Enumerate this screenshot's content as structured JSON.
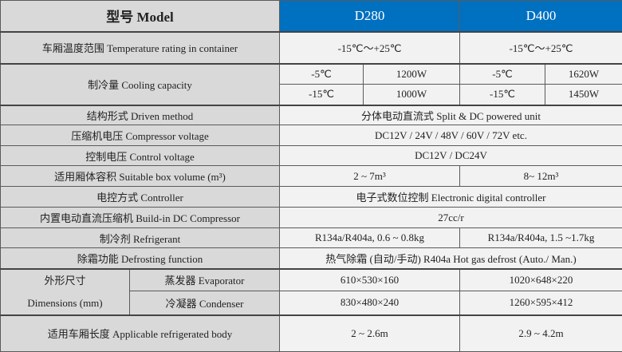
{
  "header": {
    "model": "型号 Model",
    "d280": "D280",
    "d400": "D400"
  },
  "rows": {
    "temp": {
      "label": "车厢温度范围 Temperature rating in container",
      "d280": "-15℃～+25℃",
      "d400": "-15℃～+25℃"
    },
    "cooling": {
      "label": "制冷量  Cooling capacity",
      "d280": [
        [
          "-5℃",
          "1200W"
        ],
        [
          "-15℃",
          "1000W"
        ]
      ],
      "d400": [
        [
          "-5℃",
          "1620W"
        ],
        [
          "-15℃",
          "1450W"
        ]
      ]
    },
    "driven": {
      "label": "结构形式  Driven method",
      "value": "分体电动直流式  Split & DC powered unit"
    },
    "comp_voltage": {
      "label": "压缩机电压 Compressor voltage",
      "value": "DC12V / 24V / 48V / 60V / 72V etc."
    },
    "ctrl_voltage": {
      "label": "控制电压 Control voltage",
      "value": "DC12V / DC24V"
    },
    "box": {
      "label": "适用厢体容积  Suitable box volume (m³)",
      "d280": "2 ~ 7m³",
      "d400": "8~ 12m³"
    },
    "controller": {
      "label": "电控方式  Controller",
      "value": "电子式数位控制   Electronic digital controller"
    },
    "compressor": {
      "label": "内置电动直流压缩机 Build-in DC Compressor",
      "value": "27cc/r"
    },
    "refrigerant": {
      "label": "制冷剂 Refrigerant",
      "d280": "R134a/R404a, 0.6 ~ 0.8kg",
      "d400": "R134a/R404a, 1.5 ~1.7kg"
    },
    "defrost": {
      "label": "除霜功能  Defrosting function",
      "value": "热气除霜 (自动/手动) R404a Hot gas defrost (Auto./ Man.)"
    },
    "dimensions": {
      "label_cn": "外形尺寸",
      "label_en": "Dimensions (mm)",
      "evaporator": {
        "label": "蒸发器 Evaporator",
        "d280": "610×530×160",
        "d400": "1020×648×220"
      },
      "condenser": {
        "label": "冷凝器 Condenser",
        "d280": "830×480×240",
        "d400": "1260×595×412"
      }
    },
    "body": {
      "label": "适用车厢长度  Applicable refrigerated body",
      "d280": "2 ~ 2.6m",
      "d400": "2.9 ~ 4.2m"
    }
  },
  "colors": {
    "header_blue": "#0070c0",
    "label_gray": "#d9d9d9",
    "cell_bg": "#f2f2f2"
  }
}
